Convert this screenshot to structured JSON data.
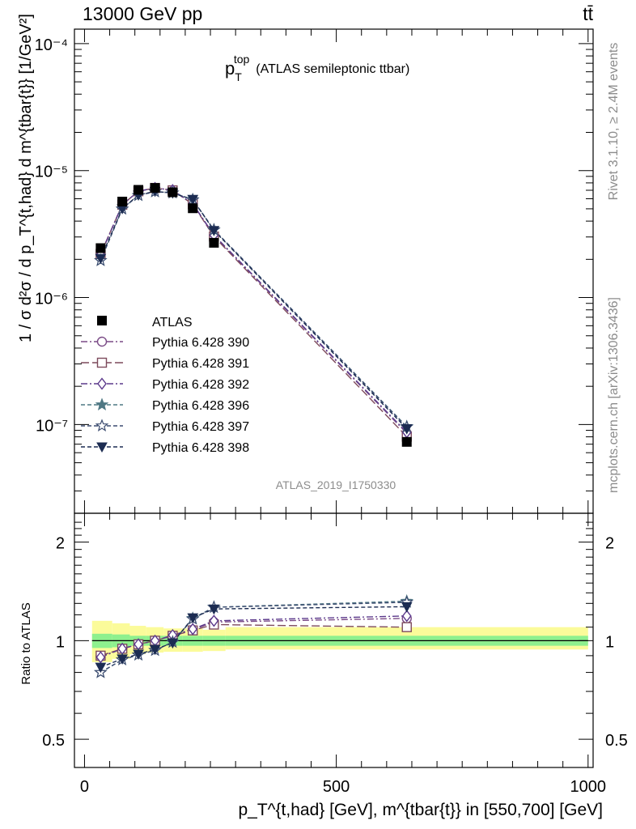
{
  "header": {
    "left": "13000 GeV pp",
    "right": "tt̄"
  },
  "side_labels": {
    "top": "Rivet 3.1.10, ≥ 2.4M events",
    "bottom": "mcplots.cern.ch [arXiv:1306.3436]"
  },
  "analysis_tag": "ATLAS_2019_I1750330",
  "main_title": {
    "symbol": "p",
    "sub": "T",
    "sup": "top",
    "rest": "(ATLAS semileptonic ttbar)"
  },
  "y_label_text": "1 / σ d²σ / d p_T^{t,had} d m^{tbar{t}} [1/GeV²]",
  "ratio_ylabel": "Ratio to ATLAS",
  "x_label_text": "p_T^{t,had} [GeV], m^{tbar{t}} in [550,700] [GeV]",
  "colors": {
    "p390": "#7a4a86",
    "p391": "#7d4a5c",
    "p392": "#5c3a8c",
    "p396": "#4f7884",
    "p397": "#3c4c70",
    "p398": "#1c2c52",
    "band_inner": "#8ef08e",
    "band_outer": "#fbfb9a"
  },
  "chart_data": {
    "type": "line",
    "x": [
      32,
      75,
      107,
      140,
      175,
      215,
      257,
      640
    ],
    "xlim": [
      -20,
      1010
    ],
    "x_ticks": [
      "0",
      "500",
      "1000"
    ],
    "main": {
      "ylim_log": [
        2e-08,
        0.00013
      ],
      "y_ticks": [
        "10⁻⁷",
        "10⁻⁶",
        "10⁻⁵",
        "10⁻⁴"
      ],
      "y_tick_values": [
        1e-07,
        1e-06,
        1e-05,
        0.0001
      ]
    },
    "ratio": {
      "ylim_log": [
        0.41,
        2.45
      ],
      "y_ticks": [
        "0.5",
        "1",
        "2"
      ],
      "y_tick_values": [
        0.5,
        1,
        2
      ]
    },
    "data_series": {
      "name": "ATLAS",
      "values": [
        2.45e-06,
        5.7e-06,
        7.05e-06,
        7.3e-06,
        6.75e-06,
        5.05e-06,
        2.7e-06,
        7.3e-08
      ]
    },
    "bins": [
      [
        15,
        55,
        0.95,
        1.05,
        0.86,
        1.15
      ],
      [
        55,
        90,
        0.955,
        1.045,
        0.88,
        1.13
      ],
      [
        90,
        122,
        0.965,
        1.035,
        0.91,
        1.11
      ],
      [
        122,
        157,
        0.965,
        1.035,
        0.92,
        1.1
      ],
      [
        157,
        195,
        0.965,
        1.035,
        0.925,
        1.09
      ],
      [
        195,
        235,
        0.965,
        1.035,
        0.925,
        1.09
      ],
      [
        235,
        280,
        0.965,
        1.035,
        0.93,
        1.08
      ],
      [
        280,
        1000,
        0.965,
        1.035,
        0.94,
        1.1
      ]
    ],
    "series": [
      {
        "name": "Pythia 6.428 390",
        "color": "p390",
        "marker": "circle",
        "dash": "8,3,2,3",
        "ratio": [
          0.895,
          0.945,
          0.975,
          1.0,
          1.035,
          1.08,
          1.14,
          1.17
        ]
      },
      {
        "name": "Pythia 6.428 391",
        "color": "p391",
        "marker": "square",
        "dash": "10,4",
        "ratio": [
          0.9,
          0.945,
          0.975,
          1.0,
          1.035,
          1.075,
          1.12,
          1.1
        ]
      },
      {
        "name": "Pythia 6.428 392",
        "color": "p392",
        "marker": "diamond",
        "dash": "8,3,2,3",
        "ratio": [
          0.89,
          0.945,
          0.975,
          1.0,
          1.04,
          1.085,
          1.15,
          1.19
        ]
      },
      {
        "name": "Pythia 6.428 396",
        "color": "p396",
        "marker": "star-filled",
        "dash": "5,3",
        "ratio": [
          0.8,
          0.875,
          0.905,
          0.935,
          0.99,
          1.17,
          1.265,
          1.32
        ]
      },
      {
        "name": "Pythia 6.428 397",
        "color": "p397",
        "marker": "star-open",
        "dash": "5,3",
        "ratio": [
          0.8,
          0.875,
          0.905,
          0.935,
          0.99,
          1.165,
          1.265,
          1.31
        ]
      },
      {
        "name": "Pythia 6.428 398",
        "color": "p398",
        "marker": "triangle-down",
        "dash": "5,3",
        "ratio": [
          0.83,
          0.88,
          0.91,
          0.94,
          0.985,
          1.175,
          1.25,
          1.27
        ]
      }
    ]
  }
}
